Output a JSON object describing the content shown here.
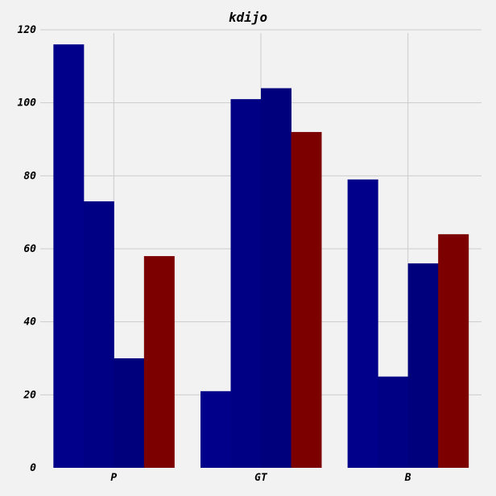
{
  "chart_data": {
    "type": "bar",
    "title": "kdijo",
    "xlabel": "",
    "ylabel": "",
    "categories": [
      "P",
      "GT",
      "B"
    ],
    "series": [
      {
        "values": [
          116,
          21,
          79
        ],
        "color": "#00008b"
      },
      {
        "values": [
          73,
          101,
          25
        ],
        "color": "#000085"
      },
      {
        "values": [
          30,
          104,
          56
        ],
        "color": "#00007d"
      },
      {
        "values": [
          58,
          92,
          64
        ],
        "color": "#7c0000"
      }
    ],
    "ylim": [
      0,
      120
    ],
    "yticks": [
      0,
      20,
      40,
      60,
      80,
      100,
      120
    ],
    "grid": true,
    "background": "#f2f2f2",
    "grid_color": "#cccccc"
  }
}
